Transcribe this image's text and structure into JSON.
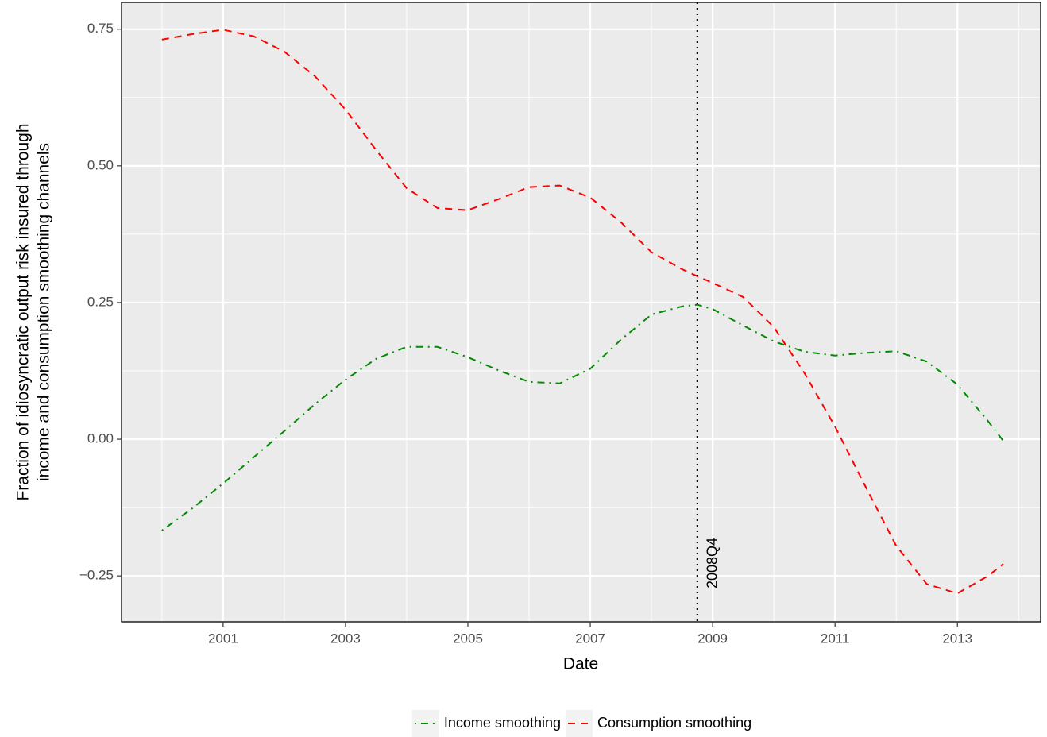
{
  "chart_data": {
    "type": "line",
    "xlabel": "Date",
    "ylabel": [
      "Fraction of idiosyncratic output risk insured through",
      "income and consumption smoothing channels"
    ],
    "x": [
      2000,
      2000.5,
      2001,
      2001.5,
      2002,
      2002.5,
      2003,
      2003.5,
      2004,
      2004.5,
      2005,
      2005.5,
      2006,
      2006.5,
      2007,
      2007.5,
      2008,
      2008.5,
      2008.75,
      2009,
      2009.5,
      2010,
      2010.5,
      2011,
      2011.5,
      2012,
      2012.5,
      2013,
      2013.5,
      2013.75
    ],
    "series": [
      {
        "name": "Income smoothing",
        "color": "#008b00",
        "linestyle": "dashdot",
        "values": [
          -0.167,
          -0.126,
          -0.081,
          -0.033,
          0.015,
          0.064,
          0.109,
          0.147,
          0.169,
          0.169,
          0.15,
          0.126,
          0.105,
          0.102,
          0.129,
          0.182,
          0.228,
          0.243,
          0.246,
          0.238,
          0.208,
          0.179,
          0.16,
          0.153,
          0.158,
          0.161,
          0.142,
          0.1,
          0.033,
          -0.003
        ]
      },
      {
        "name": "Consumption smoothing",
        "color": "#ff0000",
        "linestyle": "dashed",
        "values": [
          0.731,
          0.741,
          0.749,
          0.737,
          0.709,
          0.664,
          0.603,
          0.529,
          0.459,
          0.423,
          0.419,
          0.439,
          0.461,
          0.464,
          0.442,
          0.397,
          0.342,
          0.311,
          0.298,
          0.286,
          0.26,
          0.205,
          0.121,
          0.023,
          -0.087,
          -0.195,
          -0.265,
          -0.282,
          -0.25,
          -0.228
        ]
      }
    ],
    "vline": {
      "x": 2008.75,
      "label": "2008Q4",
      "color": "#000000"
    },
    "xlim": [
      1999.34,
      2014.36
    ],
    "ylim": [
      -0.334,
      0.799
    ],
    "xticks": [
      2001,
      2003,
      2005,
      2007,
      2009,
      2011,
      2013
    ],
    "yticks": [
      {
        "value": -0.25,
        "label": "−0.25"
      },
      {
        "value": 0,
        "label": "0.00"
      },
      0.25,
      {
        "value": 0.5,
        "label": "0.50"
      },
      0.75
    ],
    "grid": true,
    "legend": "bottom"
  }
}
